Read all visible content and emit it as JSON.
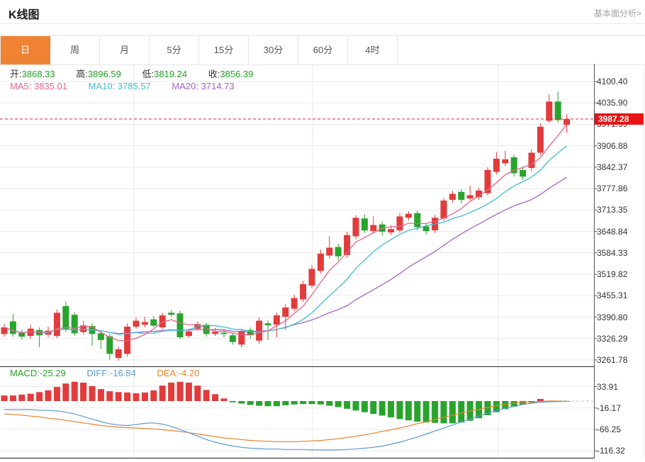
{
  "header": {
    "title": "K线图",
    "link_label": "基本面分析>"
  },
  "tabs": [
    "日",
    "周",
    "月",
    "5分",
    "15分",
    "30分",
    "60分",
    "4时"
  ],
  "active_tab": "日",
  "legend_ohlc": [
    {
      "label": "开:",
      "value": "3868.33"
    },
    {
      "label": "高:",
      "value": "3896.59"
    },
    {
      "label": "低:",
      "value": "3819.24"
    },
    {
      "label": "收:",
      "value": "3856.39"
    }
  ],
  "legend_ma": [
    {
      "label": "MA5:",
      "value": "3835.01"
    },
    {
      "label": "MA10:",
      "value": "3785.57"
    },
    {
      "label": "MA20:",
      "value": "3714.73"
    }
  ],
  "legend_macd": [
    {
      "label": "MACD:",
      "value": "-25.29"
    },
    {
      "label": "DIFF:",
      "value": "-16.84"
    },
    {
      "label": "DEA:",
      "value": "-4.20"
    }
  ],
  "price_tag": "3987.28",
  "colors": {
    "up": "#e23b3b",
    "down": "#28a42c",
    "tab_active": "#ef8333",
    "tag_bg": "#e81414",
    "dashed_price_line": "#f42222",
    "ma5": "#e8638c",
    "ma10": "#3fbdd6",
    "ma20": "#a864c8",
    "diff": "#5a9bd8",
    "dea": "#e8842c",
    "grid": "#e9e9e9",
    "axis_text": "#333333",
    "ohlc_value_green": "#21a21f"
  },
  "chart_data": {
    "type": "candlestick",
    "title": "K线图 (daily K-line with MA5/MA10/MA20 and MACD panel)",
    "main_panel": {
      "y_ticks": [
        "4100.40",
        "4035.90",
        "3971.39",
        "3906.88",
        "3842.37",
        "3777.86",
        "3713.35",
        "3648.84",
        "3584.33",
        "3519.82",
        "3455.31",
        "3390.80",
        "3326.29",
        "3261.78"
      ],
      "ylim": [
        3230,
        4160
      ],
      "last_price": 3987.28,
      "grid": true,
      "candles_ohlc_format": [
        "open",
        "high",
        "low",
        "close"
      ],
      "candles": [
        [
          3340,
          3370,
          3332,
          3360
        ],
        [
          3378,
          3400,
          3332,
          3340
        ],
        [
          3346,
          3354,
          3324,
          3332
        ],
        [
          3334,
          3368,
          3326,
          3356
        ],
        [
          3352,
          3360,
          3300,
          3336
        ],
        [
          3338,
          3362,
          3330,
          3350
        ],
        [
          3334,
          3414,
          3328,
          3404
        ],
        [
          3424,
          3438,
          3346,
          3354
        ],
        [
          3398,
          3406,
          3334,
          3342
        ],
        [
          3346,
          3380,
          3338,
          3366
        ],
        [
          3364,
          3372,
          3304,
          3340
        ],
        [
          3342,
          3350,
          3296,
          3322
        ],
        [
          3333,
          3340,
          3262,
          3280
        ],
        [
          3268,
          3302,
          3260,
          3294
        ],
        [
          3280,
          3372,
          3272,
          3362
        ],
        [
          3362,
          3390,
          3356,
          3380
        ],
        [
          3368,
          3392,
          3360,
          3376
        ],
        [
          3384,
          3394,
          3360,
          3365
        ],
        [
          3360,
          3404,
          3354,
          3396
        ],
        [
          3404,
          3412,
          3392,
          3398
        ],
        [
          3402,
          3410,
          3324,
          3330
        ],
        [
          3334,
          3356,
          3328,
          3348
        ],
        [
          3356,
          3378,
          3350,
          3370
        ],
        [
          3368,
          3374,
          3332,
          3340
        ],
        [
          3340,
          3358,
          3334,
          3346
        ],
        [
          3344,
          3352,
          3330,
          3340
        ],
        [
          3336,
          3344,
          3308,
          3316
        ],
        [
          3308,
          3356,
          3300,
          3348
        ],
        [
          3352,
          3360,
          3326,
          3336
        ],
        [
          3320,
          3390,
          3310,
          3380
        ],
        [
          3372,
          3382,
          3322,
          3366
        ],
        [
          3368,
          3404,
          3330,
          3396
        ],
        [
          3392,
          3430,
          3352,
          3420
        ],
        [
          3416,
          3458,
          3408,
          3448
        ],
        [
          3444,
          3500,
          3436,
          3490
        ],
        [
          3486,
          3546,
          3478,
          3536
        ],
        [
          3530,
          3594,
          3522,
          3582
        ],
        [
          3576,
          3634,
          3568,
          3600
        ],
        [
          3602,
          3612,
          3562,
          3574
        ],
        [
          3578,
          3648,
          3570,
          3638
        ],
        [
          3634,
          3698,
          3626,
          3690
        ],
        [
          3688,
          3700,
          3644,
          3652
        ],
        [
          3650,
          3694,
          3642,
          3668
        ],
        [
          3670,
          3678,
          3636,
          3648
        ],
        [
          3646,
          3668,
          3638,
          3656
        ],
        [
          3652,
          3704,
          3644,
          3694
        ],
        [
          3690,
          3710,
          3682,
          3702
        ],
        [
          3704,
          3712,
          3652,
          3662
        ],
        [
          3664,
          3672,
          3640,
          3650
        ],
        [
          3652,
          3698,
          3644,
          3690
        ],
        [
          3688,
          3750,
          3680,
          3742
        ],
        [
          3744,
          3772,
          3736,
          3762
        ],
        [
          3768,
          3776,
          3734,
          3744
        ],
        [
          3748,
          3786,
          3742,
          3758
        ],
        [
          3752,
          3780,
          3744,
          3772
        ],
        [
          3764,
          3842,
          3756,
          3834
        ],
        [
          3828,
          3888,
          3820,
          3868
        ],
        [
          3854,
          3892,
          3846,
          3866
        ],
        [
          3872,
          3880,
          3814,
          3824
        ],
        [
          3834,
          3844,
          3804,
          3814
        ],
        [
          3840,
          3896,
          3830,
          3886
        ],
        [
          3886,
          3974,
          3878,
          3964
        ],
        [
          3982,
          4062,
          3976,
          4040
        ],
        [
          4040,
          4070,
          3978,
          3984
        ],
        [
          3970,
          4002,
          3946,
          3987.28
        ]
      ],
      "ma_windows": [
        5,
        10,
        20
      ]
    },
    "macd_panel": {
      "y_ticks": [
        "33.91",
        "-16.17",
        "-66.25",
        "-116.32"
      ],
      "ylim": [
        -133,
        46
      ],
      "bars": [
        13,
        13,
        15,
        17,
        21,
        25,
        33,
        41,
        45,
        43,
        35,
        28,
        23,
        21,
        20,
        18,
        20,
        25,
        36,
        43,
        45,
        43,
        36,
        26,
        16,
        6,
        -3,
        -6,
        -9,
        -11,
        -12,
        -12,
        -10,
        -8,
        -7,
        -7,
        -8,
        -11,
        -14,
        -18,
        -22,
        -26,
        -30,
        -34,
        -38,
        -42,
        -45,
        -48,
        -50,
        -51,
        -52,
        -52,
        -50,
        -46,
        -40,
        -33,
        -26,
        -19,
        -13,
        -8,
        -4,
        5,
        1,
        0,
        0
      ],
      "diff": [
        -20,
        -20,
        -20,
        -20,
        -21,
        -22,
        -23,
        -26,
        -30,
        -36,
        -42,
        -48,
        -53,
        -56,
        -57,
        -55,
        -52,
        -51,
        -54,
        -59,
        -66,
        -74,
        -82,
        -90,
        -96,
        -101,
        -105,
        -108,
        -110,
        -111,
        -112,
        -112,
        -113,
        -113,
        -113,
        -114,
        -114,
        -114,
        -114,
        -113,
        -112,
        -110,
        -108,
        -105,
        -101,
        -96,
        -90,
        -84,
        -77,
        -70,
        -63,
        -56,
        -49,
        -42,
        -35,
        -28,
        -22,
        -17,
        -12,
        -8,
        -5,
        -3,
        -2,
        -1,
        -1
      ],
      "dea": [
        -30,
        -31,
        -33,
        -35,
        -37,
        -40,
        -42,
        -45,
        -48,
        -51,
        -54,
        -57,
        -59,
        -61,
        -62,
        -63,
        -64,
        -65,
        -67,
        -69,
        -71,
        -74,
        -77,
        -80,
        -83,
        -86,
        -88,
        -90,
        -92,
        -93,
        -94,
        -95,
        -95,
        -95,
        -94,
        -93,
        -92,
        -90,
        -88,
        -85,
        -82,
        -79,
        -75,
        -71,
        -67,
        -63,
        -58,
        -53,
        -48,
        -43,
        -38,
        -33,
        -28,
        -23,
        -19,
        -15,
        -11,
        -8,
        -5,
        -3,
        -2,
        -1,
        0,
        0,
        0
      ]
    }
  }
}
